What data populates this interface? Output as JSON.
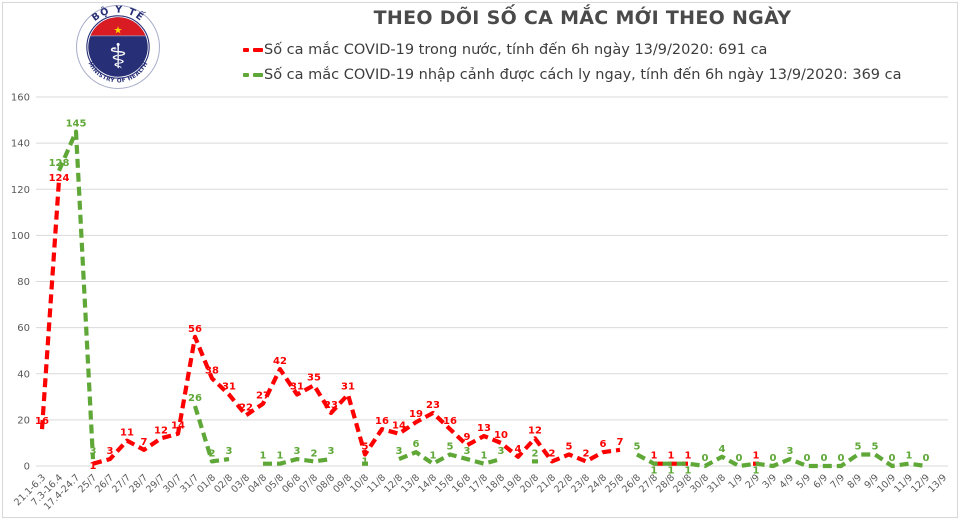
{
  "header": {
    "title": "THEO DÕI SỐ CA MẮC MỚI THEO NGÀY",
    "logo": {
      "top_text": "BỘ Y TẾ",
      "bottom_text": "MINISTRY OF HEALTH",
      "star": "★",
      "caduceus": "⚕",
      "navy": "#272f77",
      "red": "#d91c24",
      "gold": "#ffd200"
    },
    "legend": [
      {
        "label": "Số ca mắc COVID-19 trong nước, tính đến 6h ngày 13/9/2020: 691 ca",
        "color": "#fe0000"
      },
      {
        "label": "Số ca mắc COVID-19 nhập cảnh được cách ly ngay, tính đến 6h ngày 13/9/2020: 369 ca",
        "color": "#5fa838"
      }
    ]
  },
  "chart_data": {
    "type": "line",
    "title": "THEO DÕI SỐ CA MẮC MỚI THEO NGÀY",
    "line_style": "dashed",
    "grid": true,
    "legend_position": "top",
    "xlabel": "",
    "ylabel": "",
    "ylim": [
      0,
      160
    ],
    "yticks": [
      0,
      20,
      40,
      60,
      80,
      100,
      120,
      140,
      160
    ],
    "categories": [
      "21.1-6.3",
      "7.3-16.4",
      "17.4-24.7",
      "25/7",
      "26/7",
      "27/7",
      "28/7",
      "29/7",
      "30/7",
      "31/7",
      "01/8",
      "02/8",
      "03/8",
      "04/8",
      "05/8",
      "06/8",
      "07/8",
      "08/8",
      "09/8",
      "10/8",
      "11/8",
      "12/8",
      "13/8",
      "14/8",
      "15/8",
      "16/8",
      "17/8",
      "18/8",
      "19/8",
      "20/8",
      "21/8",
      "22/8",
      "23/8",
      "24/8",
      "25/8",
      "26/8",
      "27/8",
      "28/8",
      "29/8",
      "30/8",
      "31/8",
      "1/9",
      "2/9",
      "3/9",
      "4/9",
      "5/9",
      "6/9",
      "7/9",
      "8/9",
      "9/9",
      "10/9",
      "11/9",
      "12/9",
      "13/9"
    ],
    "series": [
      {
        "name": "Số ca mắc COVID-19 trong nước, tính đến 6h ngày 13/9/2020: 691 ca",
        "color": "#fe0000",
        "total": 691,
        "values": [
          16,
          124,
          null,
          1,
          3,
          11,
          7,
          12,
          14,
          56,
          38,
          31,
          22,
          27,
          42,
          31,
          35,
          23,
          31,
          5,
          16,
          14,
          19,
          23,
          16,
          9,
          13,
          10,
          4,
          12,
          2,
          5,
          2,
          6,
          7,
          null,
          1,
          1,
          1,
          null,
          null,
          null,
          1,
          null,
          null,
          null,
          null,
          null,
          null,
          null,
          null,
          null,
          null,
          null
        ]
      },
      {
        "name": "Số ca mắc COVID-19 nhập cảnh được cách ly ngay, tính đến 6h ngày 13/9/2020: 369 ca",
        "color": "#5fa838",
        "total": 369,
        "values": [
          null,
          128,
          145,
          3,
          null,
          null,
          null,
          null,
          null,
          26,
          2,
          3,
          null,
          1,
          1,
          3,
          2,
          3,
          null,
          1,
          null,
          3,
          6,
          1,
          5,
          3,
          1,
          3,
          null,
          2,
          null,
          null,
          null,
          null,
          null,
          5,
          1,
          1,
          1,
          0,
          4,
          0,
          1,
          0,
          3,
          0,
          0,
          0,
          5,
          5,
          0,
          1,
          0,
          null
        ]
      }
    ],
    "axis_color": "#595959",
    "grid_color": "#d9d9d9"
  }
}
